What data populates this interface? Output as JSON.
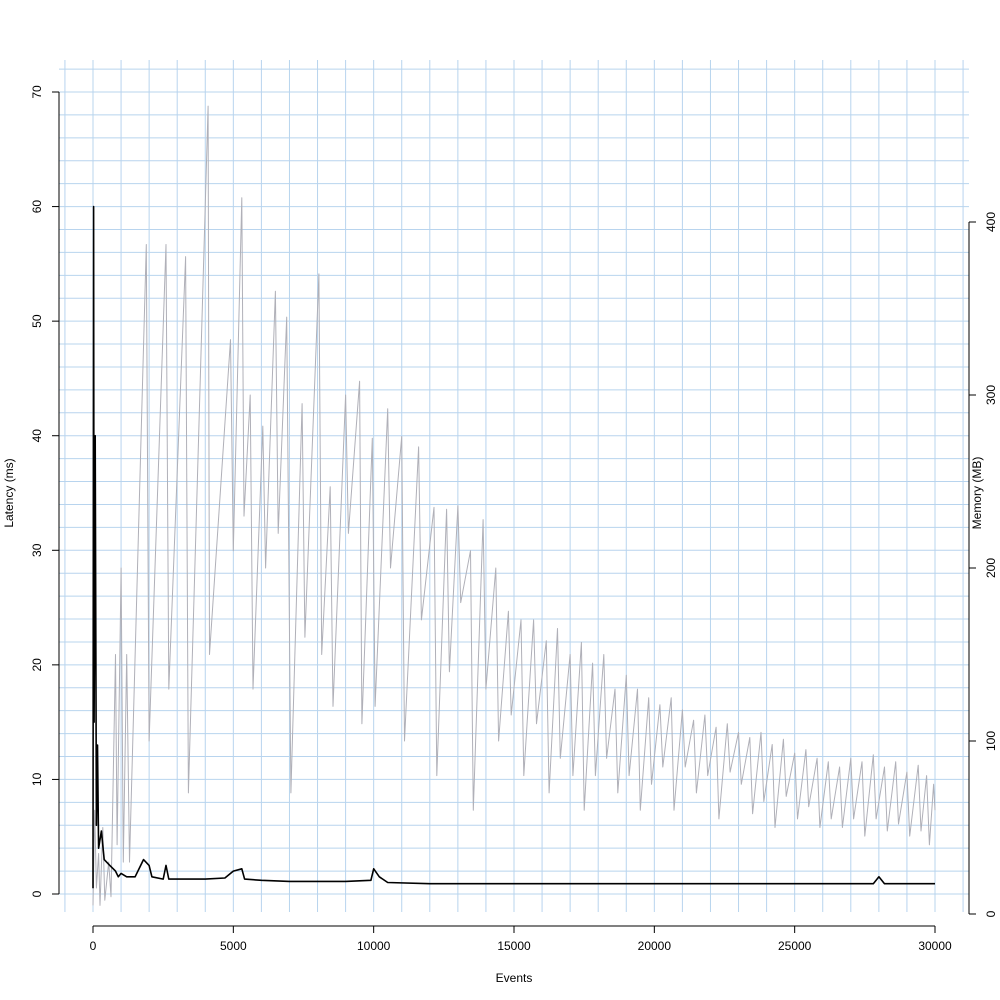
{
  "chart_data": {
    "type": "line",
    "title": "",
    "xlabel": "Events",
    "ylabel": "Latency (ms)",
    "y2label": "Memory (MB)",
    "grid": true,
    "grid_color": "#b8d4ee",
    "xlim": [
      0,
      30000
    ],
    "ylim": [
      0,
      70
    ],
    "y2lim": [
      0,
      400
    ],
    "xticks": [
      0,
      5000,
      10000,
      15000,
      20000,
      25000,
      30000
    ],
    "yticks": [
      0,
      10,
      20,
      30,
      40,
      50,
      60,
      70
    ],
    "y2ticks": [
      0,
      100,
      200,
      300,
      400
    ],
    "series": [
      {
        "axis": "y2",
        "color": "#b0b0b8",
        "points": [
          [
            0,
            5
          ],
          [
            60,
            60
          ],
          [
            120,
            15
          ],
          [
            200,
            35
          ],
          [
            250,
            5
          ],
          [
            350,
            50
          ],
          [
            420,
            8
          ],
          [
            560,
            30
          ],
          [
            640,
            10
          ],
          [
            800,
            150
          ],
          [
            860,
            40
          ],
          [
            1000,
            200
          ],
          [
            1080,
            30
          ],
          [
            1200,
            150
          ],
          [
            1300,
            30
          ],
          [
            1900,
            387
          ],
          [
            2000,
            100
          ],
          [
            2600,
            387
          ],
          [
            2700,
            130
          ],
          [
            3300,
            380
          ],
          [
            3400,
            70
          ],
          [
            4100,
            467
          ],
          [
            4150,
            150
          ],
          [
            4900,
            332
          ],
          [
            5000,
            210
          ],
          [
            5300,
            414
          ],
          [
            5380,
            230
          ],
          [
            5600,
            300
          ],
          [
            5700,
            130
          ],
          [
            6050,
            282
          ],
          [
            6150,
            200
          ],
          [
            6500,
            360
          ],
          [
            6600,
            220
          ],
          [
            6900,
            345
          ],
          [
            7050,
            70
          ],
          [
            7450,
            295
          ],
          [
            7550,
            160
          ],
          [
            8050,
            370
          ],
          [
            8150,
            150
          ],
          [
            8450,
            247
          ],
          [
            8550,
            120
          ],
          [
            9000,
            300
          ],
          [
            9100,
            220
          ],
          [
            9500,
            308
          ],
          [
            9580,
            110
          ],
          [
            9950,
            275
          ],
          [
            10050,
            120
          ],
          [
            10500,
            292
          ],
          [
            10600,
            200
          ],
          [
            11000,
            276
          ],
          [
            11100,
            100
          ],
          [
            11600,
            270
          ],
          [
            11700,
            170
          ],
          [
            12150,
            235
          ],
          [
            12250,
            80
          ],
          [
            12600,
            234
          ],
          [
            12700,
            140
          ],
          [
            13000,
            236
          ],
          [
            13100,
            180
          ],
          [
            13450,
            210
          ],
          [
            13550,
            60
          ],
          [
            13900,
            228
          ],
          [
            14000,
            130
          ],
          [
            14350,
            200
          ],
          [
            14450,
            100
          ],
          [
            14800,
            175
          ],
          [
            14900,
            115
          ],
          [
            15250,
            170
          ],
          [
            15350,
            80
          ],
          [
            15700,
            170
          ],
          [
            15800,
            110
          ],
          [
            16150,
            158
          ],
          [
            16250,
            70
          ],
          [
            16550,
            165
          ],
          [
            16650,
            90
          ],
          [
            17000,
            150
          ],
          [
            17100,
            80
          ],
          [
            17400,
            157
          ],
          [
            17500,
            60
          ],
          [
            17800,
            145
          ],
          [
            17900,
            80
          ],
          [
            18200,
            150
          ],
          [
            18300,
            90
          ],
          [
            18600,
            130
          ],
          [
            18700,
            70
          ],
          [
            19000,
            138
          ],
          [
            19100,
            80
          ],
          [
            19400,
            130
          ],
          [
            19500,
            60
          ],
          [
            19800,
            125
          ],
          [
            19900,
            75
          ],
          [
            20200,
            121
          ],
          [
            20300,
            85
          ],
          [
            20600,
            125
          ],
          [
            20700,
            60
          ],
          [
            21000,
            118
          ],
          [
            21100,
            85
          ],
          [
            21400,
            112
          ],
          [
            21500,
            70
          ],
          [
            21800,
            115
          ],
          [
            21900,
            80
          ],
          [
            22200,
            108
          ],
          [
            22300,
            55
          ],
          [
            22600,
            110
          ],
          [
            22700,
            82
          ],
          [
            23000,
            105
          ],
          [
            23100,
            75
          ],
          [
            23400,
            102
          ],
          [
            23500,
            58
          ],
          [
            23800,
            105
          ],
          [
            23900,
            65
          ],
          [
            24200,
            98
          ],
          [
            24300,
            50
          ],
          [
            24600,
            101
          ],
          [
            24700,
            68
          ],
          [
            25000,
            93
          ],
          [
            25100,
            55
          ],
          [
            25400,
            95
          ],
          [
            25500,
            62
          ],
          [
            25800,
            90
          ],
          [
            25900,
            50
          ],
          [
            26200,
            88
          ],
          [
            26300,
            55
          ],
          [
            26600,
            85
          ],
          [
            26700,
            50
          ],
          [
            27000,
            90
          ],
          [
            27100,
            55
          ],
          [
            27400,
            88
          ],
          [
            27500,
            45
          ],
          [
            27800,
            92
          ],
          [
            27900,
            55
          ],
          [
            28200,
            85
          ],
          [
            28300,
            48
          ],
          [
            28600,
            88
          ],
          [
            28700,
            52
          ],
          [
            29000,
            82
          ],
          [
            29100,
            45
          ],
          [
            29400,
            86
          ],
          [
            29500,
            48
          ],
          [
            29700,
            80
          ],
          [
            29800,
            40
          ],
          [
            29950,
            75
          ],
          [
            30000,
            60
          ]
        ]
      },
      {
        "axis": "y",
        "color": "#000000",
        "points": [
          [
            0,
            0.5
          ],
          [
            20,
            60
          ],
          [
            40,
            15
          ],
          [
            80,
            40
          ],
          [
            120,
            6
          ],
          [
            160,
            13
          ],
          [
            200,
            4
          ],
          [
            300,
            5.5
          ],
          [
            400,
            3
          ],
          [
            600,
            2.5
          ],
          [
            800,
            2
          ],
          [
            900,
            1.5
          ],
          [
            1000,
            1.8
          ],
          [
            1200,
            1.5
          ],
          [
            1500,
            1.5
          ],
          [
            1700,
            2.5
          ],
          [
            1800,
            3
          ],
          [
            2000,
            2.5
          ],
          [
            2100,
            1.5
          ],
          [
            2500,
            1.3
          ],
          [
            2600,
            2.5
          ],
          [
            2700,
            1.3
          ],
          [
            3000,
            1.3
          ],
          [
            4000,
            1.3
          ],
          [
            4700,
            1.4
          ],
          [
            5000,
            2
          ],
          [
            5300,
            2.2
          ],
          [
            5400,
            1.3
          ],
          [
            6000,
            1.2
          ],
          [
            7000,
            1.1
          ],
          [
            8000,
            1.1
          ],
          [
            9000,
            1.1
          ],
          [
            9900,
            1.2
          ],
          [
            10000,
            2.2
          ],
          [
            10200,
            1.5
          ],
          [
            10500,
            1.0
          ],
          [
            12000,
            0.9
          ],
          [
            14000,
            0.9
          ],
          [
            16000,
            0.9
          ],
          [
            18000,
            0.9
          ],
          [
            20000,
            0.9
          ],
          [
            22000,
            0.9
          ],
          [
            24000,
            0.9
          ],
          [
            26000,
            0.9
          ],
          [
            27800,
            0.9
          ],
          [
            28000,
            1.5
          ],
          [
            28200,
            0.9
          ],
          [
            30000,
            0.9
          ]
        ]
      }
    ]
  }
}
